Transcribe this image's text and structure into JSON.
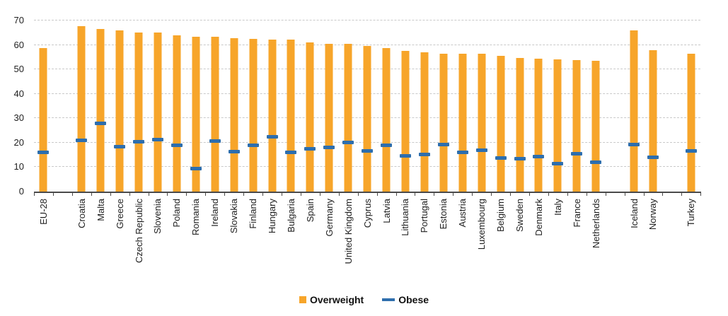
{
  "chart_data": {
    "type": "bar",
    "title": "",
    "xlabel": "",
    "ylabel": "",
    "ylim": [
      0,
      70
    ],
    "yticks": [
      0,
      10,
      20,
      30,
      40,
      50,
      60,
      70
    ],
    "grid": "horizontal-dashed",
    "legend_position": "bottom-center",
    "categories": [
      "EU-28",
      "Croatia",
      "Malta",
      "Greece",
      "Czech Republic",
      "Slovenia",
      "Poland",
      "Romania",
      "Ireland",
      "Slovakia",
      "Finland",
      "Hungary",
      "Bulgaria",
      "Spain",
      "Germany",
      "United Kingdom",
      "Cyprus",
      "Latvia",
      "Lithuania",
      "Portugal",
      "Estonia",
      "Austria",
      "Luxembourg",
      "Belgium",
      "Sweden",
      "Denmark",
      "Italy",
      "France",
      "Netherlands",
      "Iceland",
      "Norway",
      "Turkey"
    ],
    "gaps_after_categories": [
      "EU-28",
      "Netherlands",
      "Norway"
    ],
    "series": [
      {
        "name": "Overweight",
        "style": "bar",
        "color": "#F7A52A",
        "values": [
          58.8,
          67.7,
          66.6,
          66.0,
          65.1,
          65.0,
          63.9,
          63.3,
          63.3,
          62.9,
          62.6,
          62.2,
          62.1,
          61.0,
          60.4,
          60.4,
          59.6,
          58.8,
          57.6,
          57.0,
          56.5,
          56.4,
          56.3,
          55.5,
          54.8,
          54.4,
          54.2,
          53.8,
          53.5,
          66.0,
          57.9,
          56.4
        ]
      },
      {
        "name": "Obese",
        "style": "dash-marker",
        "color": "#2E6EAD",
        "values": [
          15.9,
          20.8,
          27.9,
          18.2,
          20.2,
          21.2,
          18.9,
          9.2,
          20.6,
          16.2,
          18.8,
          22.3,
          16.0,
          17.3,
          17.8,
          20.0,
          16.5,
          18.9,
          14.4,
          15.0,
          19.1,
          15.9,
          16.9,
          13.7,
          13.4,
          14.1,
          11.3,
          15.4,
          12.0,
          19.2,
          13.8,
          16.5
        ]
      }
    ]
  },
  "colors": {
    "bar_orange": "#F7A52A",
    "marker_blue": "#2E6EAD",
    "gridline_gray": "#c9c9c9",
    "axis_gray": "#4a4a4a",
    "text_color": "#1f1f1f"
  }
}
